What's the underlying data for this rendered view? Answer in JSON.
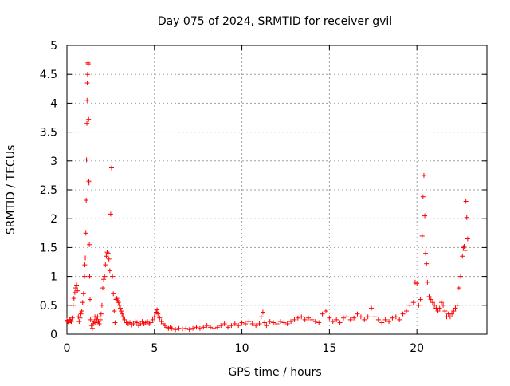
{
  "chart_data": {
    "type": "scatter",
    "title": "Day 075 of 2024, SRMTID for receiver gvil",
    "xlabel": "GPS time / hours",
    "ylabel": "SRMTID / TECUs",
    "xlim": [
      0,
      24
    ],
    "ylim": [
      0,
      5
    ],
    "x_ticks": [
      "0",
      "5",
      "10",
      "15",
      "20"
    ],
    "x_tick_values": [
      0,
      5,
      10,
      15,
      20
    ],
    "y_ticks": [
      "0",
      "0.5",
      "1",
      "1.5",
      "2",
      "2.5",
      "3",
      "3.5",
      "4",
      "4.5",
      "5"
    ],
    "y_tick_values": [
      0,
      0.5,
      1,
      1.5,
      2,
      2.5,
      3,
      3.5,
      4,
      4.5,
      5
    ],
    "grid": true,
    "marker": "+",
    "color": "#ff0000",
    "series": [
      {
        "name": "SRMTID",
        "points": [
          [
            0.0,
            0.24
          ],
          [
            0.05,
            0.22
          ],
          [
            0.1,
            0.2
          ],
          [
            0.15,
            0.25
          ],
          [
            0.2,
            0.23
          ],
          [
            0.25,
            0.22
          ],
          [
            0.3,
            0.28
          ],
          [
            0.35,
            0.5
          ],
          [
            0.4,
            0.62
          ],
          [
            0.45,
            0.72
          ],
          [
            0.5,
            0.8
          ],
          [
            0.55,
            0.85
          ],
          [
            0.6,
            0.75
          ],
          [
            0.65,
            0.3
          ],
          [
            0.7,
            0.22
          ],
          [
            0.75,
            0.28
          ],
          [
            0.8,
            0.35
          ],
          [
            0.85,
            0.4
          ],
          [
            0.9,
            0.55
          ],
          [
            0.95,
            0.7
          ],
          [
            1.0,
            1.0
          ],
          [
            1.02,
            1.2
          ],
          [
            1.05,
            1.32
          ],
          [
            1.08,
            1.75
          ],
          [
            1.1,
            2.32
          ],
          [
            1.12,
            3.02
          ],
          [
            1.14,
            3.65
          ],
          [
            1.15,
            4.05
          ],
          [
            1.16,
            4.35
          ],
          [
            1.18,
            4.5
          ],
          [
            1.2,
            4.7
          ],
          [
            1.22,
            4.68
          ],
          [
            1.24,
            3.72
          ],
          [
            1.25,
            2.65
          ],
          [
            1.26,
            2.62
          ],
          [
            1.28,
            1.55
          ],
          [
            1.3,
            1.0
          ],
          [
            1.32,
            0.6
          ],
          [
            1.35,
            0.25
          ],
          [
            1.4,
            0.15
          ],
          [
            1.45,
            0.1
          ],
          [
            1.5,
            0.18
          ],
          [
            1.55,
            0.22
          ],
          [
            1.6,
            0.3
          ],
          [
            1.65,
            0.2
          ],
          [
            1.7,
            0.25
          ],
          [
            1.75,
            0.3
          ],
          [
            1.8,
            0.22
          ],
          [
            1.85,
            0.18
          ],
          [
            1.9,
            0.25
          ],
          [
            1.95,
            0.35
          ],
          [
            2.0,
            0.5
          ],
          [
            2.05,
            0.8
          ],
          [
            2.1,
            0.95
          ],
          [
            2.15,
            1.0
          ],
          [
            2.2,
            1.2
          ],
          [
            2.25,
            1.35
          ],
          [
            2.3,
            1.42
          ],
          [
            2.35,
            1.4
          ],
          [
            2.4,
            1.3
          ],
          [
            2.45,
            1.1
          ],
          [
            2.5,
            2.08
          ],
          [
            2.55,
            2.88
          ],
          [
            2.6,
            1.0
          ],
          [
            2.65,
            0.7
          ],
          [
            2.7,
            0.4
          ],
          [
            2.75,
            0.2
          ],
          [
            2.8,
            0.6
          ],
          [
            2.85,
            0.62
          ],
          [
            2.9,
            0.58
          ],
          [
            2.95,
            0.55
          ],
          [
            3.0,
            0.5
          ],
          [
            3.05,
            0.45
          ],
          [
            3.1,
            0.4
          ],
          [
            3.15,
            0.35
          ],
          [
            3.2,
            0.3
          ],
          [
            3.3,
            0.25
          ],
          [
            3.4,
            0.2
          ],
          [
            3.5,
            0.18
          ],
          [
            3.6,
            0.2
          ],
          [
            3.7,
            0.16
          ],
          [
            3.8,
            0.18
          ],
          [
            3.9,
            0.22
          ],
          [
            4.0,
            0.2
          ],
          [
            4.1,
            0.15
          ],
          [
            4.2,
            0.18
          ],
          [
            4.3,
            0.22
          ],
          [
            4.4,
            0.18
          ],
          [
            4.5,
            0.2
          ],
          [
            4.6,
            0.22
          ],
          [
            4.7,
            0.18
          ],
          [
            4.8,
            0.2
          ],
          [
            4.9,
            0.25
          ],
          [
            5.0,
            0.3
          ],
          [
            5.1,
            0.38
          ],
          [
            5.15,
            0.42
          ],
          [
            5.2,
            0.35
          ],
          [
            5.3,
            0.28
          ],
          [
            5.4,
            0.22
          ],
          [
            5.5,
            0.18
          ],
          [
            5.6,
            0.15
          ],
          [
            5.7,
            0.12
          ],
          [
            5.8,
            0.1
          ],
          [
            5.9,
            0.12
          ],
          [
            6.0,
            0.1
          ],
          [
            6.2,
            0.08
          ],
          [
            6.4,
            0.1
          ],
          [
            6.6,
            0.09
          ],
          [
            6.8,
            0.1
          ],
          [
            7.0,
            0.08
          ],
          [
            7.2,
            0.1
          ],
          [
            7.4,
            0.12
          ],
          [
            7.6,
            0.1
          ],
          [
            7.8,
            0.12
          ],
          [
            8.0,
            0.15
          ],
          [
            8.2,
            0.12
          ],
          [
            8.4,
            0.1
          ],
          [
            8.6,
            0.12
          ],
          [
            8.8,
            0.15
          ],
          [
            9.0,
            0.18
          ],
          [
            9.2,
            0.12
          ],
          [
            9.4,
            0.15
          ],
          [
            9.6,
            0.18
          ],
          [
            9.8,
            0.15
          ],
          [
            10.0,
            0.2
          ],
          [
            10.2,
            0.18
          ],
          [
            10.4,
            0.22
          ],
          [
            10.6,
            0.18
          ],
          [
            10.8,
            0.15
          ],
          [
            11.0,
            0.18
          ],
          [
            11.1,
            0.3
          ],
          [
            11.2,
            0.38
          ],
          [
            11.3,
            0.2
          ],
          [
            11.4,
            0.15
          ],
          [
            11.6,
            0.22
          ],
          [
            11.8,
            0.2
          ],
          [
            12.0,
            0.18
          ],
          [
            12.2,
            0.22
          ],
          [
            12.4,
            0.2
          ],
          [
            12.6,
            0.18
          ],
          [
            12.8,
            0.22
          ],
          [
            13.0,
            0.25
          ],
          [
            13.2,
            0.28
          ],
          [
            13.4,
            0.3
          ],
          [
            13.6,
            0.25
          ],
          [
            13.8,
            0.28
          ],
          [
            14.0,
            0.25
          ],
          [
            14.2,
            0.22
          ],
          [
            14.4,
            0.2
          ],
          [
            14.6,
            0.35
          ],
          [
            14.8,
            0.4
          ],
          [
            15.0,
            0.28
          ],
          [
            15.2,
            0.22
          ],
          [
            15.4,
            0.25
          ],
          [
            15.6,
            0.2
          ],
          [
            15.8,
            0.28
          ],
          [
            16.0,
            0.3
          ],
          [
            16.2,
            0.25
          ],
          [
            16.4,
            0.28
          ],
          [
            16.6,
            0.35
          ],
          [
            16.8,
            0.3
          ],
          [
            17.0,
            0.25
          ],
          [
            17.2,
            0.3
          ],
          [
            17.4,
            0.45
          ],
          [
            17.6,
            0.3
          ],
          [
            17.8,
            0.25
          ],
          [
            18.0,
            0.2
          ],
          [
            18.2,
            0.25
          ],
          [
            18.4,
            0.22
          ],
          [
            18.6,
            0.28
          ],
          [
            18.8,
            0.3
          ],
          [
            19.0,
            0.25
          ],
          [
            19.2,
            0.35
          ],
          [
            19.4,
            0.4
          ],
          [
            19.6,
            0.5
          ],
          [
            19.8,
            0.55
          ],
          [
            19.9,
            0.9
          ],
          [
            20.0,
            0.88
          ],
          [
            20.1,
            0.5
          ],
          [
            20.2,
            0.6
          ],
          [
            20.3,
            1.7
          ],
          [
            20.35,
            2.38
          ],
          [
            20.4,
            2.75
          ],
          [
            20.45,
            2.05
          ],
          [
            20.5,
            1.4
          ],
          [
            20.55,
            1.22
          ],
          [
            20.6,
            0.9
          ],
          [
            20.7,
            0.65
          ],
          [
            20.8,
            0.6
          ],
          [
            20.9,
            0.55
          ],
          [
            21.0,
            0.5
          ],
          [
            21.1,
            0.45
          ],
          [
            21.2,
            0.4
          ],
          [
            21.3,
            0.45
          ],
          [
            21.4,
            0.55
          ],
          [
            21.5,
            0.5
          ],
          [
            21.6,
            0.4
          ],
          [
            21.7,
            0.3
          ],
          [
            21.8,
            0.35
          ],
          [
            21.9,
            0.3
          ],
          [
            22.0,
            0.35
          ],
          [
            22.1,
            0.4
          ],
          [
            22.2,
            0.45
          ],
          [
            22.3,
            0.5
          ],
          [
            22.4,
            0.8
          ],
          [
            22.5,
            1.0
          ],
          [
            22.6,
            1.35
          ],
          [
            22.65,
            1.5
          ],
          [
            22.7,
            1.52
          ],
          [
            22.75,
            1.45
          ],
          [
            22.8,
            2.3
          ],
          [
            22.85,
            2.02
          ],
          [
            22.9,
            1.65
          ]
        ]
      }
    ]
  }
}
